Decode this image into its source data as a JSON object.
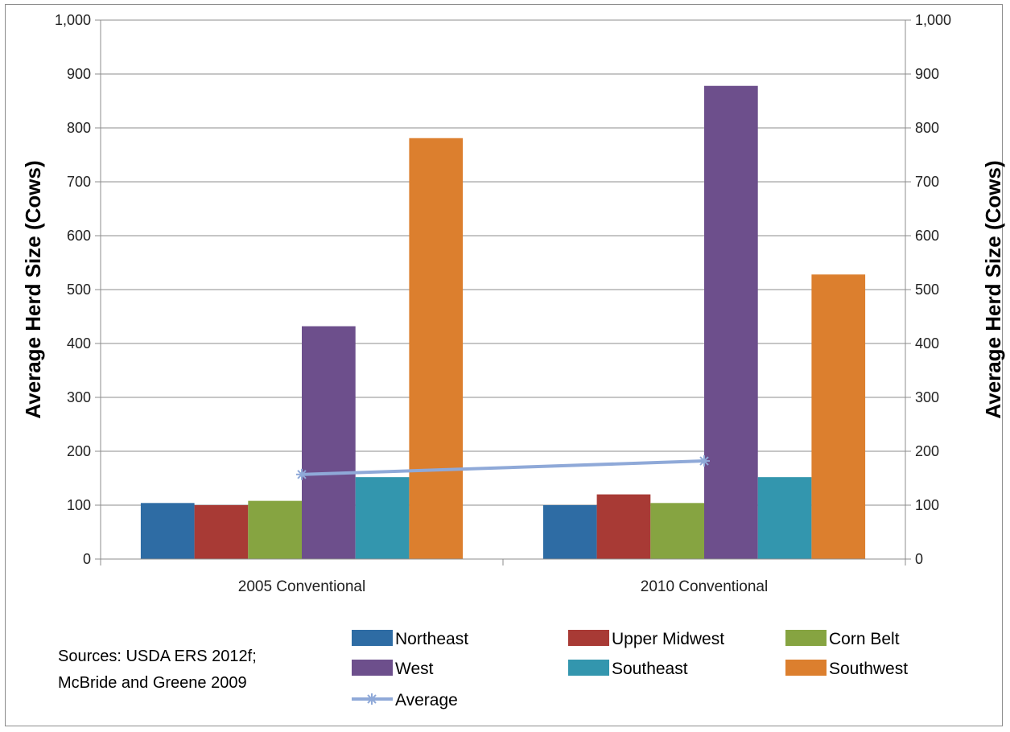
{
  "chart_data": {
    "type": "bar",
    "categories": [
      "2005 Conventional",
      "2010 Conventional"
    ],
    "series": [
      {
        "name": "Northeast",
        "values": [
          104,
          100
        ],
        "color": "#2e6ca4"
      },
      {
        "name": "Upper Midwest",
        "values": [
          100,
          120
        ],
        "color": "#a83a35"
      },
      {
        "name": "Corn Belt",
        "values": [
          108,
          104
        ],
        "color": "#86a441"
      },
      {
        "name": "West",
        "values": [
          432,
          878
        ],
        "color": "#6d4f8c"
      },
      {
        "name": "Southeast",
        "values": [
          152,
          152
        ],
        "color": "#3396ae"
      },
      {
        "name": "Southwest",
        "values": [
          781,
          528
        ],
        "color": "#dc7f2e"
      }
    ],
    "line_series": {
      "name": "Average",
      "values": [
        157,
        182
      ],
      "color": "#8fa9d8",
      "marker": "asterisk"
    },
    "ylabel": "Average Herd Size (Cows)",
    "ylabel_right": "Average Herd Size (Cows)",
    "ylim": [
      0,
      1000
    ],
    "yticks": [
      0,
      100,
      200,
      300,
      400,
      500,
      600,
      700,
      800,
      900,
      1000
    ],
    "ytick_labels": [
      "0",
      "100",
      "200",
      "300",
      "400",
      "500",
      "600",
      "700",
      "800",
      "900",
      "1,000"
    ],
    "grid": true,
    "legend_position": "bottom",
    "annotation": [
      "Sources: USDA ERS 2012f;",
      "McBride and Greene 2009"
    ]
  }
}
